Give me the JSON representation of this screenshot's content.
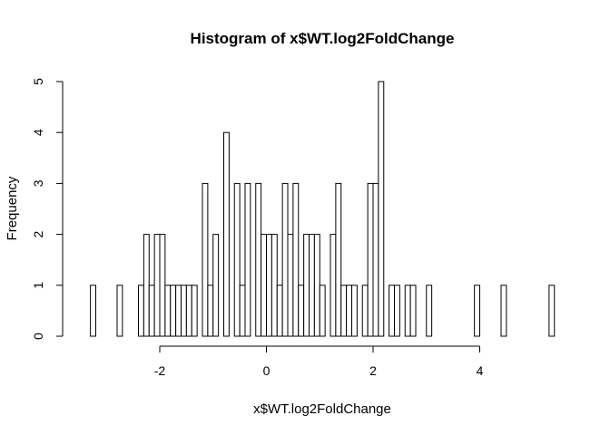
{
  "chart_data": {
    "type": "bar",
    "title": "Histogram of x$WT.log2FoldChange",
    "xlabel": "x$WT.log2FoldChange",
    "ylabel": "Frequency",
    "x_ticks": [
      -2,
      0,
      2,
      4
    ],
    "x_tick_labels": [
      "-2",
      "0",
      "2",
      "4"
    ],
    "y_ticks": [
      0,
      1,
      2,
      3,
      4,
      5
    ],
    "y_tick_labels": [
      "0",
      "1",
      "2",
      "3",
      "4",
      "5"
    ],
    "xlim": [
      -3.3,
      5.4
    ],
    "ylim": [
      0,
      5
    ],
    "bin_width": 0.1,
    "bin_start": -3.3,
    "counts": [
      1,
      0,
      0,
      0,
      0,
      1,
      0,
      0,
      0,
      1,
      2,
      1,
      2,
      2,
      1,
      1,
      1,
      1,
      1,
      1,
      0,
      3,
      1,
      2,
      0,
      4,
      0,
      3,
      1,
      3,
      0,
      3,
      2,
      2,
      2,
      1,
      3,
      2,
      3,
      1,
      2,
      2,
      2,
      1,
      0,
      2,
      3,
      1,
      1,
      1,
      0,
      1,
      3,
      3,
      5,
      0,
      1,
      1,
      0,
      1,
      1,
      0,
      0,
      1,
      0,
      0,
      0,
      0,
      0,
      0,
      0,
      0,
      1,
      0,
      0,
      0,
      0,
      1,
      0,
      0,
      0,
      0,
      0,
      0,
      0,
      0,
      1
    ],
    "grid": false,
    "legend": "none"
  }
}
